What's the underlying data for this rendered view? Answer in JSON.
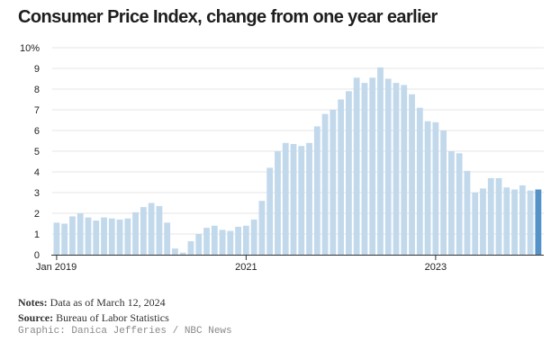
{
  "colors": {
    "bar": "#c2d9ec",
    "bar_highlight": "#5592c8",
    "grid": "#e4e4e4",
    "axis": "#333333",
    "text": "#222222",
    "credit": "#8a8a8a"
  },
  "notes": {
    "notes_label": "Notes:",
    "notes_text": "Data as of March 12, 2024",
    "source_label": "Source:",
    "source_text": "Bureau of Labor Statistics",
    "credit": "Graphic: Danica Jefferies / NBC News"
  },
  "chart_data": {
    "type": "bar",
    "title": "Consumer Price Index, change from one year earlier",
    "xlabel": "",
    "ylabel": "",
    "ylim": [
      0,
      10
    ],
    "y_ticks": [
      0,
      1,
      2,
      3,
      4,
      5,
      6,
      7,
      8,
      9,
      10
    ],
    "y_tick_labels": [
      "0",
      "1",
      "2",
      "3",
      "4",
      "5",
      "6",
      "7",
      "8",
      "9",
      "10%"
    ],
    "x_ticks": [
      {
        "index": 0,
        "label": "Jan 2019"
      },
      {
        "index": 24,
        "label": "2021"
      },
      {
        "index": 48,
        "label": "2023"
      }
    ],
    "highlight_index": 61,
    "grid": true,
    "categories": [
      "Jan 2019",
      "Feb 2019",
      "Mar 2019",
      "Apr 2019",
      "May 2019",
      "Jun 2019",
      "Jul 2019",
      "Aug 2019",
      "Sep 2019",
      "Oct 2019",
      "Nov 2019",
      "Dec 2019",
      "Jan 2020",
      "Feb 2020",
      "Mar 2020",
      "Apr 2020",
      "May 2020",
      "Jun 2020",
      "Jul 2020",
      "Aug 2020",
      "Sep 2020",
      "Oct 2020",
      "Nov 2020",
      "Dec 2020",
      "Jan 2021",
      "Feb 2021",
      "Mar 2021",
      "Apr 2021",
      "May 2021",
      "Jun 2021",
      "Jul 2021",
      "Aug 2021",
      "Sep 2021",
      "Oct 2021",
      "Nov 2021",
      "Dec 2021",
      "Jan 2022",
      "Feb 2022",
      "Mar 2022",
      "Apr 2022",
      "May 2022",
      "Jun 2022",
      "Jul 2022",
      "Aug 2022",
      "Sep 2022",
      "Oct 2022",
      "Nov 2022",
      "Dec 2022",
      "Jan 2023",
      "Feb 2023",
      "Mar 2023",
      "Apr 2023",
      "May 2023",
      "Jun 2023",
      "Jul 2023",
      "Aug 2023",
      "Sep 2023",
      "Oct 2023",
      "Nov 2023",
      "Dec 2023",
      "Jan 2024",
      "Feb 2024"
    ],
    "values": [
      1.55,
      1.5,
      1.85,
      2.0,
      1.8,
      1.65,
      1.8,
      1.75,
      1.7,
      1.75,
      2.05,
      2.3,
      2.5,
      2.35,
      1.55,
      0.3,
      0.1,
      0.65,
      1.0,
      1.3,
      1.4,
      1.2,
      1.15,
      1.35,
      1.4,
      1.7,
      2.6,
      4.2,
      5.0,
      5.4,
      5.35,
      5.25,
      5.4,
      6.2,
      6.8,
      7.0,
      7.5,
      7.9,
      8.55,
      8.3,
      8.55,
      9.05,
      8.5,
      8.3,
      8.2,
      7.75,
      7.1,
      6.45,
      6.4,
      6.0,
      5.0,
      4.9,
      4.05,
      3.0,
      3.2,
      3.7,
      3.7,
      3.25,
      3.15,
      3.35,
      3.1,
      3.15
    ]
  }
}
